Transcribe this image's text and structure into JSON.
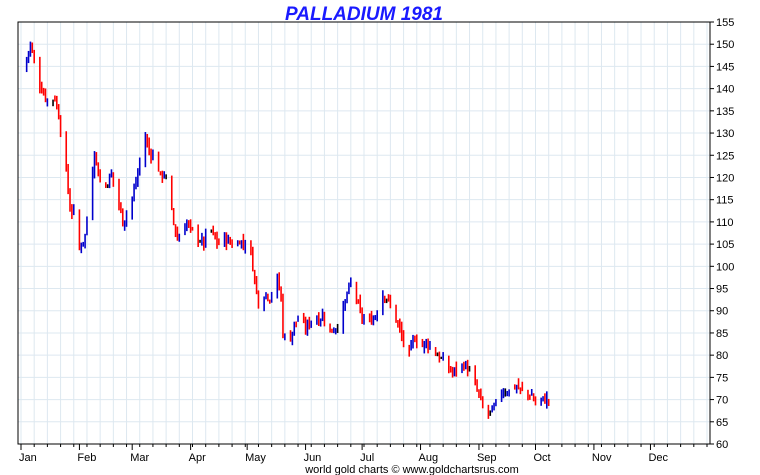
{
  "chart_data": {
    "type": "ohlc",
    "title": "PALLADIUM 1981",
    "footer": "world gold charts © www.goldchartsrus.com",
    "xlabel": "",
    "ylabel": "",
    "ylim": [
      60,
      155
    ],
    "y_ticks": [
      60,
      65,
      70,
      75,
      80,
      85,
      90,
      95,
      100,
      105,
      110,
      115,
      120,
      125,
      130,
      135,
      140,
      145,
      150,
      155
    ],
    "y_axis_side": "right",
    "grid": true,
    "x_domain_days": [
      1,
      365
    ],
    "month_ticks": [
      {
        "label": "Jan",
        "day": 1
      },
      {
        "label": "Feb",
        "day": 32
      },
      {
        "label": "Mar",
        "day": 60
      },
      {
        "label": "Apr",
        "day": 91
      },
      {
        "label": "May",
        "day": 121
      },
      {
        "label": "Jun",
        "day": 152
      },
      {
        "label": "Jul",
        "day": 182
      },
      {
        "label": "Aug",
        "day": 213
      },
      {
        "label": "Sep",
        "day": 244
      },
      {
        "label": "Oct",
        "day": 274
      },
      {
        "label": "Nov",
        "day": 305
      },
      {
        "label": "Dec",
        "day": 335
      }
    ],
    "colors": {
      "up": "#0000cc",
      "down": "#ff0000",
      "flat": "#000000",
      "grid": "#dde8f0",
      "axis": "#000000"
    },
    "series_points": [
      [
        2,
        144
      ],
      [
        4,
        147
      ],
      [
        6,
        150
      ],
      [
        8,
        146
      ],
      [
        10,
        142
      ],
      [
        12,
        140
      ],
      [
        14,
        138
      ],
      [
        16,
        137
      ],
      [
        19,
        138
      ],
      [
        21,
        134
      ],
      [
        23,
        128
      ],
      [
        25,
        121
      ],
      [
        27,
        113
      ],
      [
        29,
        112
      ],
      [
        30,
        103
      ],
      [
        32,
        104
      ],
      [
        35,
        107
      ],
      [
        37,
        114
      ],
      [
        40,
        126
      ],
      [
        42,
        121
      ],
      [
        44,
        117
      ],
      [
        47,
        119
      ],
      [
        49,
        121
      ],
      [
        51,
        117
      ],
      [
        53,
        114
      ],
      [
        55,
        110
      ],
      [
        57,
        112
      ],
      [
        59,
        114
      ],
      [
        61,
        117
      ],
      [
        63,
        121
      ],
      [
        65,
        126
      ],
      [
        67,
        129
      ],
      [
        69,
        126
      ],
      [
        71,
        125
      ],
      [
        73,
        124
      ],
      [
        75,
        120
      ],
      [
        77,
        121
      ],
      [
        79,
        118
      ],
      [
        80,
        114
      ],
      [
        82,
        110
      ],
      [
        84,
        106
      ],
      [
        86,
        108
      ],
      [
        89,
        110
      ],
      [
        91,
        108
      ],
      [
        94,
        107
      ],
      [
        96,
        106
      ],
      [
        98,
        105
      ],
      [
        100,
        109
      ],
      [
        102,
        108
      ],
      [
        104,
        106
      ],
      [
        106,
        105
      ],
      [
        108,
        107
      ],
      [
        110,
        106
      ],
      [
        113,
        105
      ],
      [
        115,
        104
      ],
      [
        117,
        106
      ],
      [
        119,
        105
      ],
      [
        121,
        106
      ],
      [
        123,
        103
      ],
      [
        125,
        97
      ],
      [
        127,
        92
      ],
      [
        129,
        93
      ],
      [
        131,
        94
      ],
      [
        133,
        93
      ],
      [
        135,
        95
      ],
      [
        137,
        97
      ],
      [
        139,
        93
      ],
      [
        140,
        85
      ],
      [
        142,
        83
      ],
      [
        144,
        84
      ],
      [
        146,
        87
      ],
      [
        148,
        88
      ],
      [
        150,
        87
      ],
      [
        152,
        86
      ],
      [
        155,
        88
      ],
      [
        157,
        89
      ],
      [
        159,
        88
      ],
      [
        161,
        89
      ],
      [
        163,
        88
      ],
      [
        165,
        85
      ],
      [
        167,
        86
      ],
      [
        169,
        87
      ],
      [
        171,
        88
      ],
      [
        173,
        92
      ],
      [
        175,
        95
      ],
      [
        177,
        97
      ],
      [
        179,
        93
      ],
      [
        181,
        89
      ],
      [
        183,
        88
      ],
      [
        185,
        87
      ],
      [
        187,
        88
      ],
      [
        189,
        89
      ],
      [
        191,
        92
      ],
      [
        193,
        94
      ],
      [
        195,
        93
      ],
      [
        197,
        91
      ],
      [
        199,
        89
      ],
      [
        201,
        87
      ],
      [
        203,
        84
      ],
      [
        205,
        82
      ],
      [
        206,
        77
      ],
      [
        208,
        82
      ],
      [
        210,
        84
      ],
      [
        212,
        83
      ],
      [
        214,
        82
      ],
      [
        216,
        83
      ],
      [
        218,
        82
      ],
      [
        220,
        81
      ],
      [
        222,
        80
      ],
      [
        224,
        79
      ],
      [
        226,
        78
      ],
      [
        228,
        77
      ],
      [
        230,
        76
      ],
      [
        232,
        77
      ],
      [
        234,
        77
      ],
      [
        236,
        78
      ],
      [
        238,
        77
      ],
      [
        240,
        75
      ],
      [
        242,
        73
      ],
      [
        244,
        71
      ],
      [
        246,
        68
      ],
      [
        248,
        67
      ],
      [
        250,
        67
      ],
      [
        252,
        68
      ],
      [
        254,
        70
      ],
      [
        256,
        72
      ],
      [
        258,
        72
      ],
      [
        260,
        72
      ],
      [
        262,
        73
      ],
      [
        264,
        73
      ],
      [
        266,
        72
      ],
      [
        268,
        72
      ],
      [
        270,
        71
      ],
      [
        272,
        71
      ],
      [
        274,
        69
      ],
      [
        276,
        70
      ],
      [
        278,
        70
      ],
      [
        280,
        70
      ],
      [
        282,
        70
      ]
    ]
  }
}
